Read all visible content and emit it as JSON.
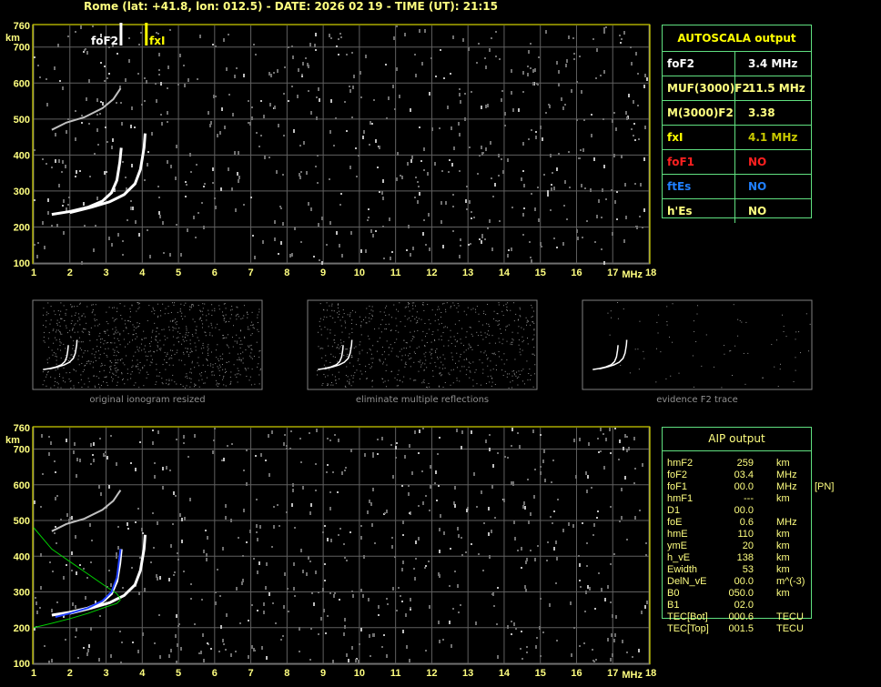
{
  "header": {
    "title": "Rome (lat: +41.8, lon: 012.5) - DATE: 2026 02 19 - TIME (UT): 21:15"
  },
  "plot": {
    "x_ticks": [
      "1",
      "2",
      "3",
      "4",
      "5",
      "6",
      "7",
      "8",
      "9",
      "10",
      "11",
      "12",
      "13",
      "14",
      "15",
      "16",
      "17",
      "18"
    ],
    "x_unit": "MHz",
    "y_ticks": [
      "760",
      "700",
      "600",
      "500",
      "400",
      "300",
      "200",
      "100"
    ],
    "y_unit": "km",
    "markers": {
      "foF2_label": "foF2",
      "fxI_label": "fxI"
    }
  },
  "autoscala": {
    "title": "AUTOSCALA output",
    "rows": [
      {
        "key": "foF2",
        "value": "3.4 MHz",
        "color": "#ffffff",
        "valcolor": "#ffffff"
      },
      {
        "key": "MUF(3000)F2",
        "value": "11.5 MHz",
        "color": "#ffff80",
        "valcolor": "#ffff80"
      },
      {
        "key": "M(3000)F2",
        "value": "3.38",
        "color": "#ffff80",
        "valcolor": "#ffff80"
      },
      {
        "key": "fxI",
        "value": "4.1 MHz",
        "color": "#ffff00",
        "valcolor": "#c8c800"
      },
      {
        "key": "foF1",
        "value": "NO",
        "color": "#ff2020",
        "valcolor": "#ff2020"
      },
      {
        "key": "ftEs",
        "value": "NO",
        "color": "#2080ff",
        "valcolor": "#2080ff"
      },
      {
        "key": "h'Es",
        "value": "NO",
        "color": "#ffff80",
        "valcolor": "#ffff80"
      }
    ]
  },
  "thumbnails": [
    {
      "caption": "original ionogram resized"
    },
    {
      "caption": "eliminate multiple reflections"
    },
    {
      "caption": "evidence F2 trace"
    }
  ],
  "aip": {
    "title": "AIP output",
    "rows": [
      [
        "hmF2",
        "259",
        "km",
        ""
      ],
      [
        "foF2",
        "03.4",
        "MHz",
        ""
      ],
      [
        "foF1",
        "00.0",
        "MHz",
        "[PN]"
      ],
      [
        "hmF1",
        "---",
        "km",
        ""
      ],
      [
        "D1",
        "00.0",
        "",
        ""
      ],
      [
        "foE",
        "0.6",
        "MHz",
        ""
      ],
      [
        "hmE",
        "110",
        "km",
        ""
      ],
      [
        "ymE",
        "20",
        "km",
        ""
      ],
      [
        "h_vE",
        "138",
        "km",
        ""
      ],
      [
        "Ewidth",
        "53",
        "km",
        ""
      ],
      [
        "DelN_vE",
        "00.0",
        "m^(-3)",
        ""
      ],
      [
        "B0",
        "050.0",
        "km",
        ""
      ],
      [
        "B1",
        "02.0",
        "",
        ""
      ],
      [
        "TEC[Bot]",
        "000.6",
        "TECU",
        ""
      ],
      [
        "TEC[Top]",
        "001.5",
        "TECU",
        ""
      ]
    ]
  },
  "chart_data": {
    "type": "scatter",
    "xlim": [
      1,
      18
    ],
    "ylim": [
      100,
      760
    ],
    "grid": true,
    "markers": {
      "foF2": 3.4,
      "fxI": 4.1
    },
    "traces": {
      "o_trace": [
        [
          1.5,
          235
        ],
        [
          2.0,
          243
        ],
        [
          2.5,
          255
        ],
        [
          2.9,
          272
        ],
        [
          3.15,
          295
        ],
        [
          3.3,
          330
        ],
        [
          3.38,
          380
        ],
        [
          3.42,
          420
        ]
      ],
      "x_trace": [
        [
          2.0,
          240
        ],
        [
          2.6,
          255
        ],
        [
          3.1,
          270
        ],
        [
          3.5,
          290
        ],
        [
          3.8,
          320
        ],
        [
          3.95,
          360
        ],
        [
          4.05,
          420
        ],
        [
          4.08,
          460
        ]
      ],
      "second_hop": [
        [
          1.5,
          470
        ],
        [
          1.9,
          490
        ],
        [
          2.4,
          505
        ],
        [
          2.9,
          530
        ],
        [
          3.2,
          555
        ],
        [
          3.4,
          585
        ]
      ],
      "profile_upper": [
        [
          1.0,
          480
        ],
        [
          1.5,
          420
        ],
        [
          2.0,
          385
        ],
        [
          2.5,
          350
        ],
        [
          3.0,
          315
        ],
        [
          3.3,
          295
        ],
        [
          3.4,
          280
        ]
      ],
      "profile_lower": [
        [
          1.0,
          200
        ],
        [
          1.5,
          212
        ],
        [
          2.0,
          225
        ],
        [
          2.5,
          240
        ],
        [
          3.0,
          258
        ],
        [
          3.3,
          268
        ],
        [
          3.4,
          278
        ]
      ],
      "blue_fit": [
        [
          1.6,
          230
        ],
        [
          2.0,
          240
        ],
        [
          2.5,
          255
        ],
        [
          2.9,
          275
        ],
        [
          3.15,
          300
        ],
        [
          3.3,
          340
        ],
        [
          3.4,
          420
        ]
      ]
    }
  }
}
